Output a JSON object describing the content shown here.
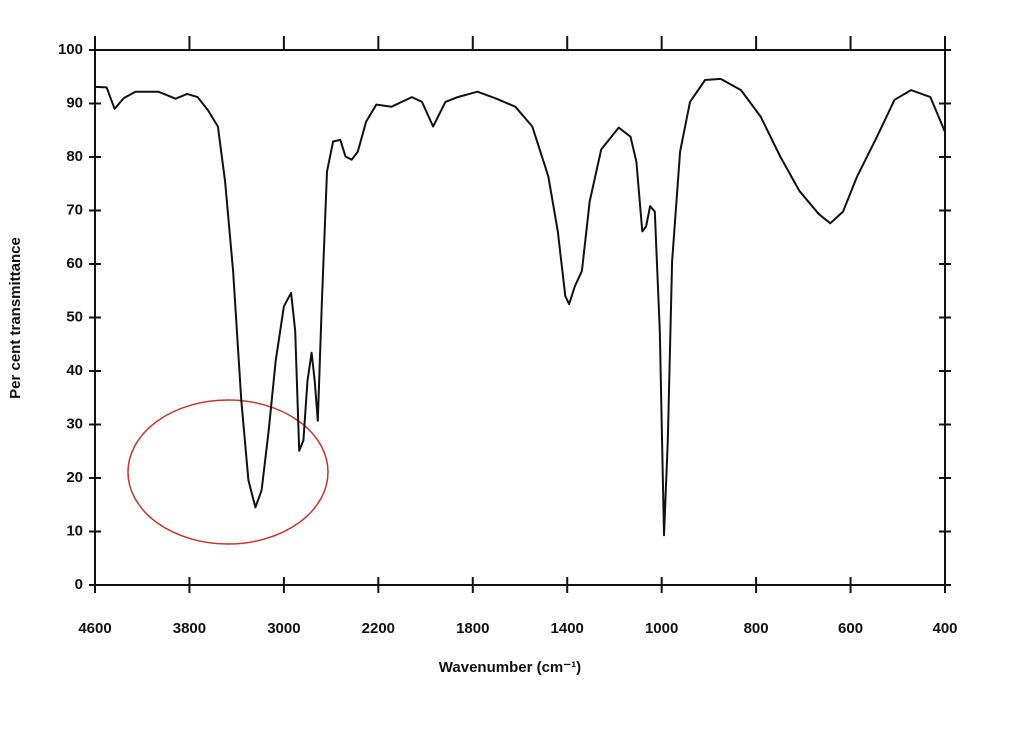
{
  "chart_data": {
    "type": "line",
    "x_label": "Wavenumber (cm⁻¹)",
    "y_label": "Per cent transmittance",
    "x": [
      4600,
      4502,
      4434,
      4356,
      4258,
      4063,
      3917,
      3820,
      3731,
      3645,
      3559,
      3498,
      3430,
      3361,
      3301,
      3241,
      3189,
      3129,
      3069,
      3000,
      2939,
      2904,
      2870,
      2835,
      2800,
      2765,
      2739,
      2713,
      2678,
      2635,
      2583,
      2522,
      2478,
      2426,
      2374,
      2304,
      2217,
      2144,
      2058,
      2015,
      1968,
      1916,
      1864,
      1780,
      1700,
      1620,
      1548,
      1480,
      1440,
      1408,
      1392,
      1367,
      1338,
      1305,
      1256,
      1182,
      1132,
      1107,
      1082,
      1066,
      1049,
      1029,
      1008,
      995,
      987,
      978,
      961,
      940,
      908,
      875,
      832,
      790,
      749,
      708,
      667,
      643,
      616,
      586,
      544,
      507,
      472,
      431,
      400
    ],
    "values": [
      93.1,
      93,
      89,
      91,
      92.2,
      92.2,
      90.9,
      91.8,
      91.2,
      88.8,
      85.7,
      75.4,
      58.7,
      34.5,
      19.6,
      14.5,
      17.7,
      28.9,
      41.9,
      52.1,
      54.6,
      47.5,
      25.1,
      27,
      38.2,
      43.4,
      38.2,
      30.7,
      53,
      77.3,
      82.9,
      83.2,
      80.1,
      79.5,
      81,
      86.6,
      89.8,
      89.4,
      91.2,
      90.3,
      85.7,
      90.3,
      91.2,
      92.2,
      90.9,
      89.4,
      85.7,
      76.4,
      66.1,
      54,
      52.5,
      55.9,
      58.7,
      71.7,
      81.4,
      85.5,
      83.8,
      79.1,
      66.1,
      67,
      70.8,
      69.8,
      47.5,
      9.3,
      27,
      60.5,
      81,
      90.3,
      94.4,
      94.6,
      92.5,
      87.5,
      80.1,
      73.6,
      69.3,
      67.6,
      69.8,
      76.4,
      83.8,
      90.7,
      92.5,
      91.2,
      84.7
    ],
    "color": "#111111",
    "xlim": [
      4600,
      400
    ],
    "xticks": [
      4600,
      3800,
      3000,
      2200,
      1800,
      1400,
      1000,
      800,
      600,
      400
    ],
    "ylim": [
      0,
      100
    ],
    "yticks": [
      0,
      10,
      20,
      30,
      40,
      50,
      60,
      70,
      80,
      90,
      100
    ]
  }
}
